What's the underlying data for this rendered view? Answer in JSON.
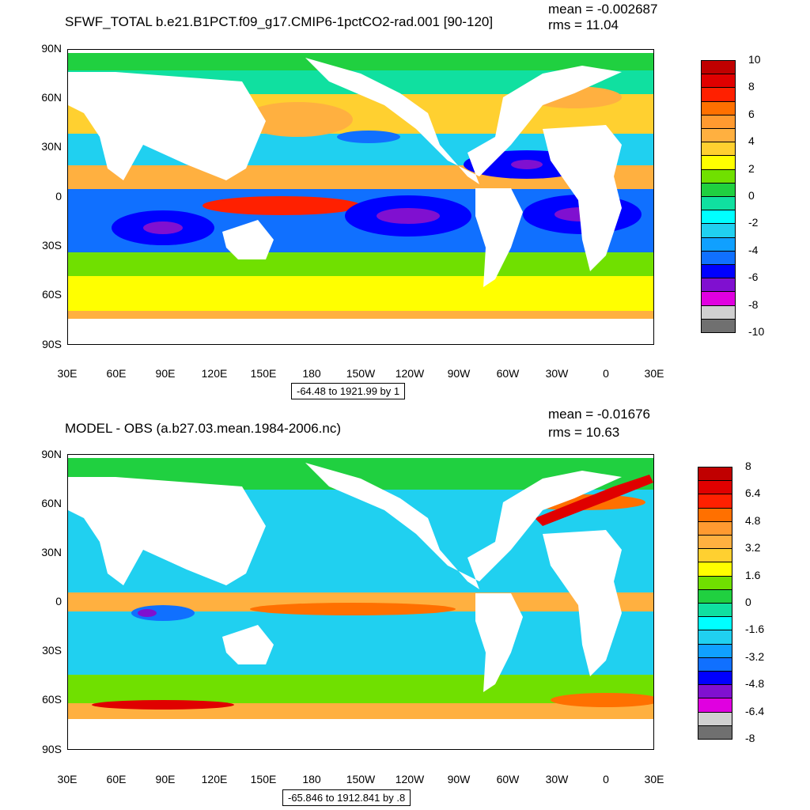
{
  "panels": [
    {
      "title": "SFWF_TOTAL b.e21.B1PCT.f09_g17.CMIP6-1pctCO2-rad.001 [90-120]",
      "mean_text": "mean = -0.002687",
      "rms_text": "rms = 11.04",
      "range_text": "-64.48 to 1921.99 by 1",
      "colorbar_labels": [
        "10",
        "8",
        "6",
        "4",
        "2",
        "0",
        "-2",
        "-4",
        "-6",
        "-8",
        "-10"
      ],
      "colorbar_colors": [
        "#c00000",
        "#e00000",
        "#ff2000",
        "#ff7000",
        "#ff9a30",
        "#ffb040",
        "#ffd030",
        "#ffff00",
        "#70e000",
        "#20d040",
        "#10e0a0",
        "#00ffff",
        "#20d0f0",
        "#10a0ff",
        "#1070ff",
        "#0000ff",
        "#8010d0",
        "#e000e0",
        "#d0d0d0",
        "#707070"
      ]
    },
    {
      "title": "MODEL - OBS (a.b27.03.mean.1984-2006.nc)",
      "mean_text": "mean = -0.01676",
      "rms_text": "rms = 10.63",
      "range_text": "-65.846 to 1912.841 by .8",
      "colorbar_labels": [
        "8",
        "6.4",
        "4.8",
        "3.2",
        "1.6",
        "0",
        "-1.6",
        "-3.2",
        "-4.8",
        "-6.4",
        "-8"
      ],
      "colorbar_colors": [
        "#c00000",
        "#e00000",
        "#ff2000",
        "#ff7000",
        "#ff9a30",
        "#ffb040",
        "#ffd030",
        "#ffff00",
        "#70e000",
        "#20d040",
        "#10e0a0",
        "#00ffff",
        "#20d0f0",
        "#10a0ff",
        "#1070ff",
        "#0000ff",
        "#8010d0",
        "#e000e0",
        "#d0d0d0",
        "#707070"
      ]
    }
  ],
  "axes": {
    "lat_labels": [
      "90N",
      "60N",
      "30N",
      "0",
      "30S",
      "60S",
      "90S"
    ],
    "lon_labels": [
      "30E",
      "60E",
      "90E",
      "120E",
      "150E",
      "180",
      "150W",
      "120W",
      "90W",
      "60W",
      "30W",
      "0",
      "30E"
    ]
  }
}
